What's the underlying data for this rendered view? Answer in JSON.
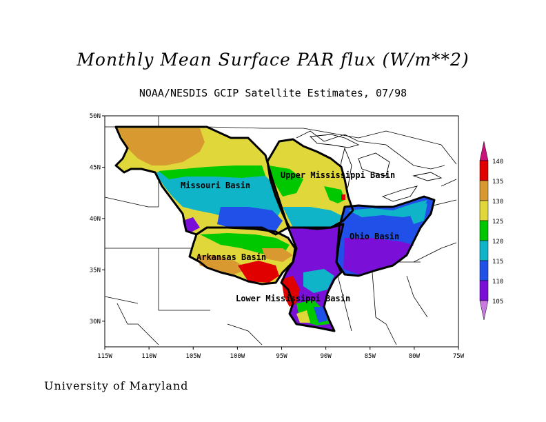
{
  "title": "Monthly Mean Surface PAR flux (W/m**2)",
  "subtitle": "NOAA/NESDIS GCIP Satellite Estimates, 07/98",
  "footer": "University of Maryland",
  "map": {
    "lon_range": [
      -115,
      -75
    ],
    "lat_range": [
      27.5,
      50
    ],
    "x_ticks": [
      "115W",
      "110W",
      "105W",
      "100W",
      "95W",
      "90W",
      "85W",
      "80W",
      "75W"
    ],
    "y_ticks": [
      "30N",
      "35N",
      "40N",
      "45N",
      "50N"
    ],
    "basins": [
      {
        "name": "Missouri Basin",
        "color": "#000000"
      },
      {
        "name": "Upper Mississippi Basin",
        "color": "#000000"
      },
      {
        "name": "Ohio Basin",
        "color": "#000000"
      },
      {
        "name": "Arkansas Basin",
        "color": "#000000"
      },
      {
        "name": "Lower Mississippi Basin",
        "color": "#000000"
      }
    ]
  },
  "colorbar": {
    "labels": [
      "140",
      "135",
      "130",
      "125",
      "120",
      "115",
      "110",
      "105"
    ],
    "colors": [
      "#e00000",
      "#d89a30",
      "#e0d83a",
      "#00c800",
      "#10b4c8",
      "#2050e8",
      "#7a10d8"
    ],
    "arrow_top_color": "#c8147a",
    "arrow_bottom_color": "#c87ae0"
  }
}
